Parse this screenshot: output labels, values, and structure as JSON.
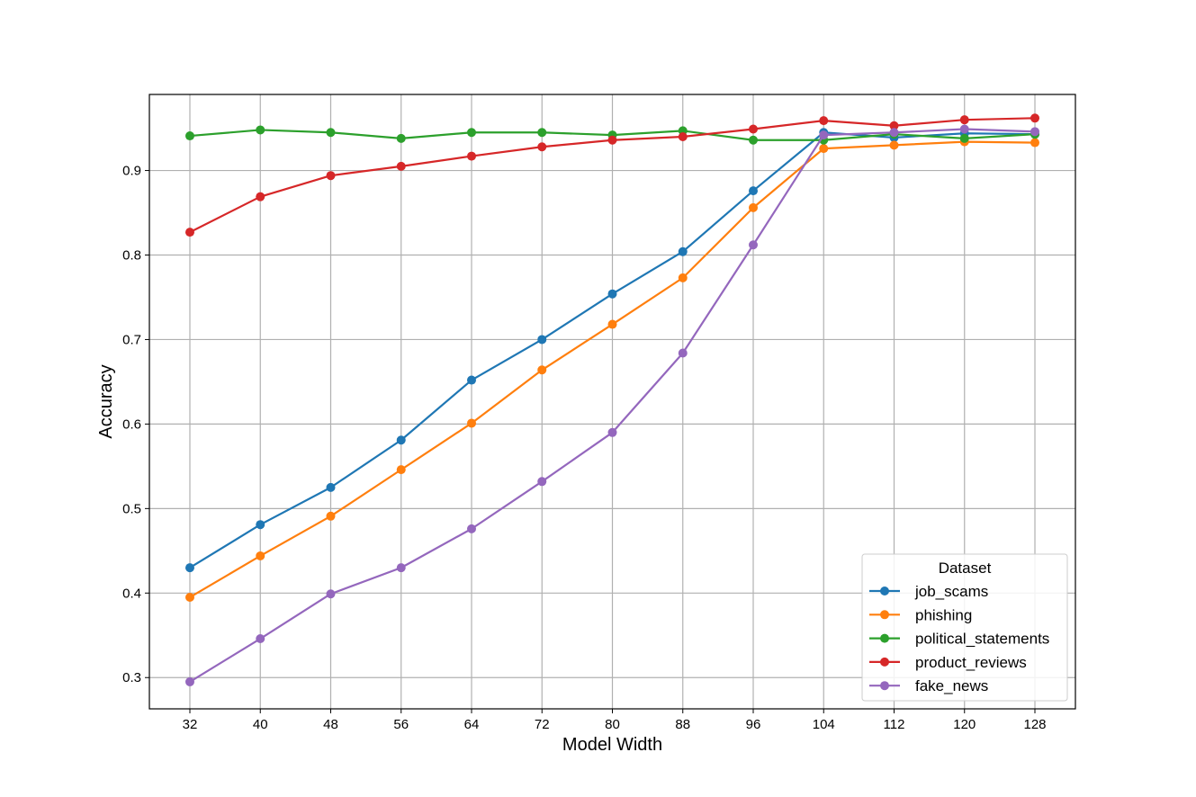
{
  "chart_data": {
    "type": "line",
    "xlabel": "Model Width",
    "ylabel": "Accuracy",
    "x": [
      32,
      40,
      48,
      56,
      64,
      72,
      80,
      88,
      96,
      104,
      112,
      120,
      128
    ],
    "xlim": [
      27.4,
      132.6
    ],
    "ylim": [
      0.263,
      0.99
    ],
    "yticks": [
      0.3,
      0.4,
      0.5,
      0.6,
      0.7,
      0.8,
      0.9
    ],
    "grid": true,
    "legend": {
      "title": "Dataset",
      "placement": "lower-right"
    },
    "series": [
      {
        "name": "job_scams",
        "color": "#1f77b4",
        "values": [
          0.43,
          0.481,
          0.525,
          0.581,
          0.652,
          0.7,
          0.754,
          0.804,
          0.876,
          0.945,
          0.939,
          0.944,
          0.943
        ]
      },
      {
        "name": "phishing",
        "color": "#ff7f0e",
        "values": [
          0.395,
          0.444,
          0.491,
          0.546,
          0.601,
          0.664,
          0.718,
          0.773,
          0.856,
          0.926,
          0.93,
          0.934,
          0.933
        ]
      },
      {
        "name": "political_statements",
        "color": "#2ca02c",
        "values": [
          0.941,
          0.948,
          0.945,
          0.938,
          0.945,
          0.945,
          0.942,
          0.947,
          0.936,
          0.936,
          0.943,
          0.938,
          0.943
        ]
      },
      {
        "name": "product_reviews",
        "color": "#d62728",
        "values": [
          0.827,
          0.869,
          0.894,
          0.905,
          0.917,
          0.928,
          0.936,
          0.94,
          0.949,
          0.959,
          0.953,
          0.96,
          0.962
        ]
      },
      {
        "name": "fake_news",
        "color": "#9467bd",
        "values": [
          0.295,
          0.346,
          0.399,
          0.43,
          0.476,
          0.532,
          0.59,
          0.684,
          0.812,
          0.942,
          0.945,
          0.949,
          0.946
        ]
      }
    ]
  }
}
